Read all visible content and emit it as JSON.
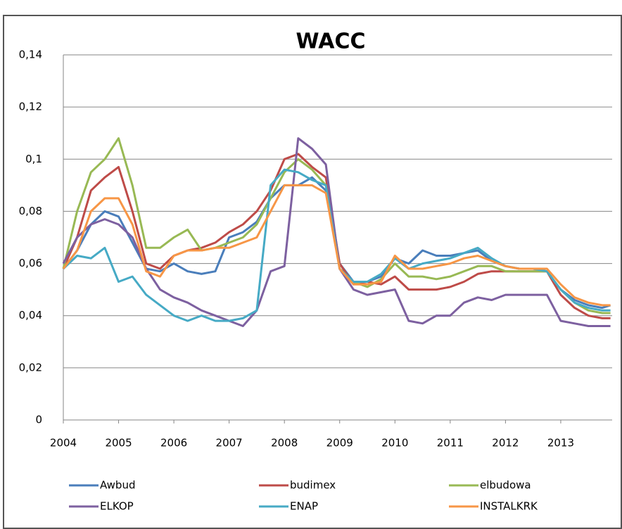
{
  "chart_data": {
    "type": "line",
    "title": "WACC",
    "x": [
      2004,
      2004.25,
      2004.5,
      2004.75,
      2005,
      2005.25,
      2005.5,
      2005.75,
      2006,
      2006.25,
      2006.5,
      2006.75,
      2007,
      2007.25,
      2007.5,
      2007.75,
      2008,
      2008.25,
      2008.5,
      2008.75,
      2009,
      2009.25,
      2009.5,
      2009.75,
      2010,
      2010.25,
      2010.5,
      2010.75,
      2011,
      2011.25,
      2011.5,
      2011.75,
      2012,
      2012.25,
      2012.5,
      2012.75,
      2013,
      2013.25,
      2013.5,
      2013.75,
      2013.9
    ],
    "series": [
      {
        "name": "Awbud",
        "color": "#4a7ebb",
        "values": [
          0.058,
          0.065,
          0.075,
          0.08,
          0.078,
          0.068,
          0.058,
          0.057,
          0.06,
          0.057,
          0.056,
          0.057,
          0.07,
          0.072,
          0.076,
          0.085,
          0.09,
          0.09,
          0.093,
          0.088,
          0.06,
          0.053,
          0.053,
          0.055,
          0.062,
          0.06,
          0.065,
          0.063,
          0.063,
          0.064,
          0.065,
          0.061,
          0.059,
          0.058,
          0.058,
          0.057,
          0.05,
          0.046,
          0.044,
          0.043,
          0.044
        ]
      },
      {
        "name": "budimex",
        "color": "#be4b48",
        "values": [
          0.058,
          0.07,
          0.088,
          0.093,
          0.097,
          0.08,
          0.06,
          0.058,
          0.063,
          0.065,
          0.066,
          0.068,
          0.072,
          0.075,
          0.08,
          0.088,
          0.1,
          0.102,
          0.097,
          0.093,
          0.06,
          0.052,
          0.053,
          0.052,
          0.055,
          0.05,
          0.05,
          0.05,
          0.051,
          0.053,
          0.056,
          0.057,
          0.057,
          0.057,
          0.057,
          0.057,
          0.048,
          0.043,
          0.04,
          0.039,
          0.039
        ]
      },
      {
        "name": "elbudowa",
        "color": "#98b954",
        "values": [
          0.058,
          0.08,
          0.095,
          0.1,
          0.108,
          0.09,
          0.066,
          0.066,
          0.07,
          0.073,
          0.065,
          0.066,
          0.068,
          0.07,
          0.075,
          0.085,
          0.095,
          0.1,
          0.096,
          0.09,
          0.058,
          0.053,
          0.051,
          0.054,
          0.06,
          0.055,
          0.055,
          0.054,
          0.055,
          0.057,
          0.059,
          0.059,
          0.057,
          0.057,
          0.057,
          0.057,
          0.05,
          0.045,
          0.042,
          0.041,
          0.041
        ]
      },
      {
        "name": "ELKOP",
        "color": "#7d60a0",
        "values": [
          0.06,
          0.07,
          0.075,
          0.077,
          0.075,
          0.07,
          0.058,
          0.05,
          0.047,
          0.045,
          0.042,
          0.04,
          0.038,
          0.036,
          0.042,
          0.057,
          0.059,
          0.108,
          0.104,
          0.098,
          0.058,
          0.05,
          0.048,
          0.049,
          0.05,
          0.038,
          0.037,
          0.04,
          0.04,
          0.045,
          0.047,
          0.046,
          0.048,
          0.048,
          0.048,
          0.048,
          0.038,
          0.037,
          0.036,
          0.036,
          0.036
        ]
      },
      {
        "name": "ENAP",
        "color": "#46aac5",
        "values": [
          0.058,
          0.063,
          0.062,
          0.066,
          0.053,
          0.055,
          0.048,
          0.044,
          0.04,
          0.038,
          0.04,
          0.038,
          0.038,
          0.039,
          0.042,
          0.09,
          0.096,
          0.095,
          0.092,
          0.09,
          0.058,
          0.053,
          0.053,
          0.056,
          0.062,
          0.058,
          0.06,
          0.061,
          0.062,
          0.064,
          0.066,
          0.062,
          0.059,
          0.058,
          0.058,
          0.057,
          0.05,
          0.045,
          0.043,
          0.042,
          0.042
        ]
      },
      {
        "name": "INSTALKRK",
        "color": "#f79646",
        "values": [
          0.058,
          0.065,
          0.08,
          0.085,
          0.085,
          0.075,
          0.057,
          0.055,
          0.063,
          0.065,
          0.065,
          0.066,
          0.066,
          0.068,
          0.07,
          0.08,
          0.09,
          0.09,
          0.09,
          0.087,
          0.058,
          0.052,
          0.052,
          0.053,
          0.063,
          0.058,
          0.058,
          0.059,
          0.06,
          0.062,
          0.063,
          0.061,
          0.059,
          0.058,
          0.058,
          0.058,
          0.052,
          0.047,
          0.045,
          0.044,
          0.044
        ]
      }
    ],
    "xlim": [
      2004,
      2013.93
    ],
    "xticks": [
      2004,
      2005,
      2006,
      2007,
      2008,
      2009,
      2010,
      2011,
      2012,
      2013
    ],
    "ylim": [
      0,
      0.14
    ],
    "yticks": [
      0,
      {
        "value": 0.02,
        "label": "0,02"
      },
      {
        "value": 0.04,
        "label": "0,04"
      },
      {
        "value": 0.06,
        "label": "0,06"
      },
      {
        "value": 0.08,
        "label": "0,08"
      },
      {
        "value": 0.1,
        "label": "0,1"
      },
      {
        "value": 0.12,
        "label": "0,12"
      },
      {
        "value": 0.14,
        "label": "0,14"
      }
    ],
    "grid": true
  }
}
